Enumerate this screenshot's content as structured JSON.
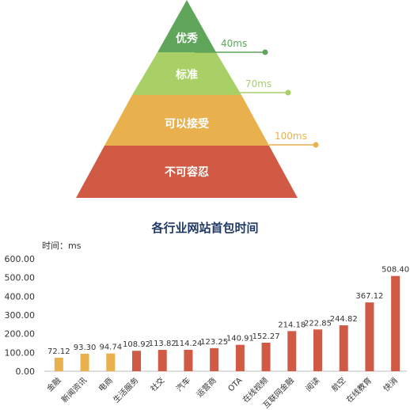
{
  "pyramid": {
    "levels": [
      {
        "label": "优秀",
        "color": "#5fa55a"
      },
      {
        "label": "标准",
        "color": "#a8d067"
      },
      {
        "label": "可以接受",
        "color": "#e8b14e"
      },
      {
        "label": "不可容忍",
        "color": "#d05a44"
      }
    ],
    "thresholds": [
      {
        "label": "40ms",
        "color": "#5fa55a"
      },
      {
        "label": "70ms",
        "color": "#a8d067"
      },
      {
        "label": "100ms",
        "color": "#e8b14e"
      }
    ]
  },
  "chart_data": {
    "type": "bar",
    "title": "各行业网站首包时间",
    "ylabel": "时间：ms",
    "xlabel": "",
    "ylim": [
      0,
      600
    ],
    "yticks": [
      "0.00",
      "100.00",
      "200.00",
      "300.00",
      "400.00",
      "500.00",
      "600.00"
    ],
    "grid": false,
    "categories": [
      "金融",
      "新闻资讯",
      "电商",
      "生活服务",
      "社交",
      "汽车",
      "运营商",
      "OTA",
      "在线视频",
      "互联网金融",
      "阅读",
      "航空",
      "在线教育",
      "快消"
    ],
    "values": [
      72.12,
      93.3,
      94.74,
      108.92,
      113.82,
      114.24,
      123.25,
      140.91,
      152.27,
      214.18,
      222.85,
      244.82,
      367.12,
      508.4
    ],
    "value_labels": [
      "72.12",
      "93.30",
      "94.74",
      "108.92",
      "113.82",
      "114.24",
      "123.25",
      "140.91",
      "152.27",
      "214.18",
      "222.85",
      "244.82",
      "367.12",
      "508.40"
    ],
    "bar_colors": [
      "#e8b14e",
      "#e8b14e",
      "#e8b14e",
      "#d05a44",
      "#d05a44",
      "#d05a44",
      "#d05a44",
      "#d05a44",
      "#d05a44",
      "#d05a44",
      "#d05a44",
      "#d05a44",
      "#d05a44",
      "#d05a44"
    ]
  }
}
